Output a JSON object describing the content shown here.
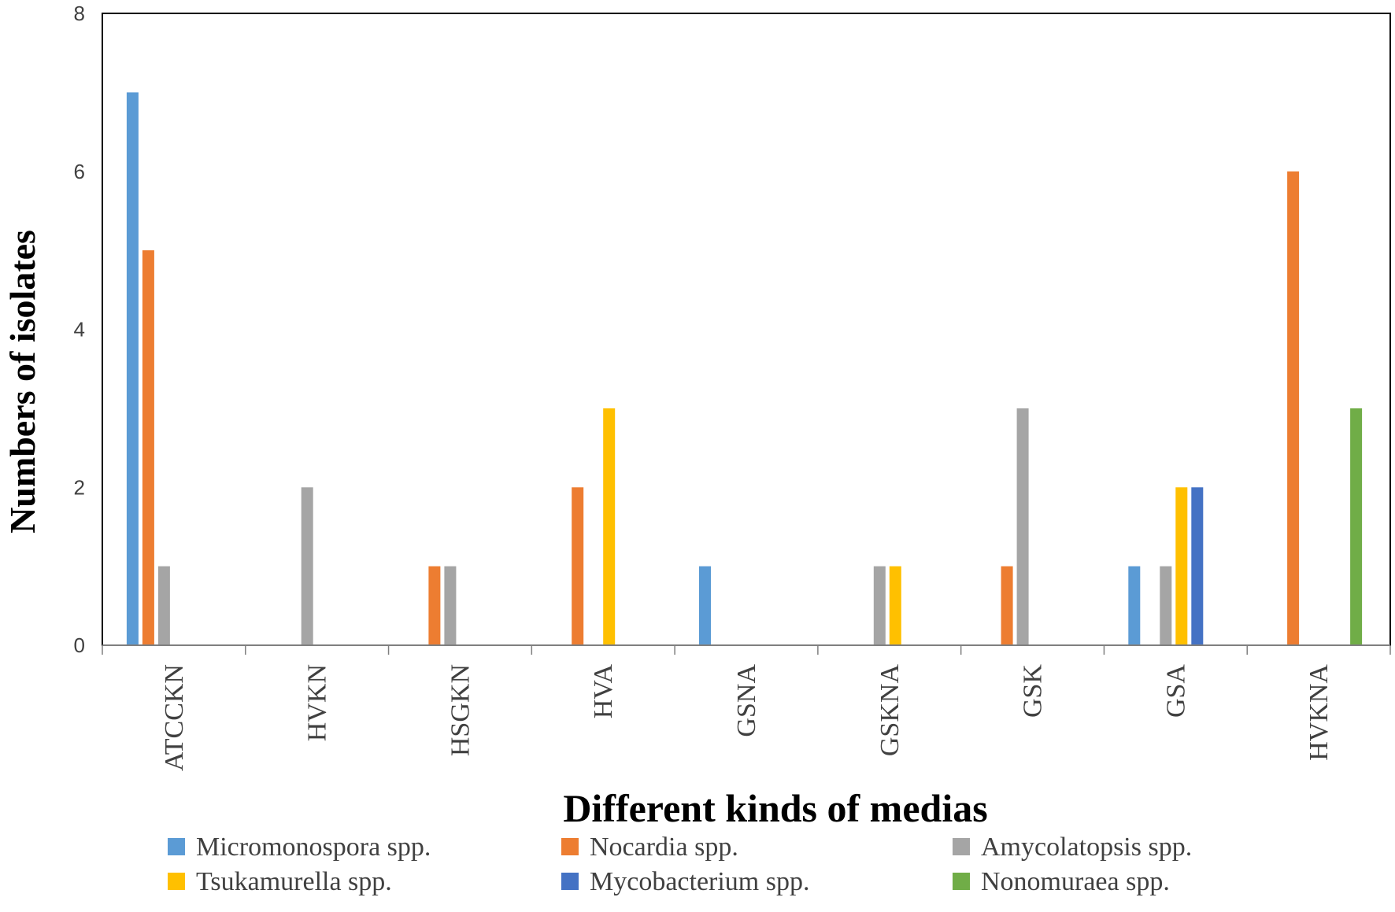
{
  "chart_data": {
    "type": "bar",
    "title": "",
    "xlabel": "Different kinds of medias",
    "ylabel": "Numbers of isolates",
    "ylim": [
      0,
      8
    ],
    "yticks": [
      0,
      2,
      4,
      6,
      8
    ],
    "grid": false,
    "legend_position": "bottom",
    "categories": [
      "ATCCKN",
      "HVKN",
      "HSGKN",
      "HVA",
      "GSNA",
      "GSKNA",
      "GSK",
      "GSA",
      "HVKNA"
    ],
    "series": [
      {
        "name": "Micromonospora spp.",
        "color": "#5B9BD5",
        "values": [
          7,
          0,
          0,
          0,
          1,
          0,
          0,
          1,
          0
        ]
      },
      {
        "name": "Nocardia spp.",
        "color": "#ED7D31",
        "values": [
          5,
          0,
          1,
          2,
          0,
          0,
          1,
          0,
          6
        ]
      },
      {
        "name": "Amycolatopsis spp.",
        "color": "#A5A5A5",
        "values": [
          1,
          2,
          1,
          0,
          0,
          1,
          3,
          1,
          0
        ]
      },
      {
        "name": "Tsukamurella spp.",
        "color": "#FFC000",
        "values": [
          0,
          0,
          0,
          3,
          0,
          1,
          0,
          2,
          0
        ]
      },
      {
        "name": "Mycobacterium spp.",
        "color": "#4472C4",
        "values": [
          0,
          0,
          0,
          0,
          0,
          0,
          0,
          2,
          0
        ]
      },
      {
        "name": "Nonomuraea spp.",
        "color": "#70AD47",
        "values": [
          0,
          0,
          0,
          0,
          0,
          0,
          0,
          0,
          3
        ]
      }
    ]
  }
}
